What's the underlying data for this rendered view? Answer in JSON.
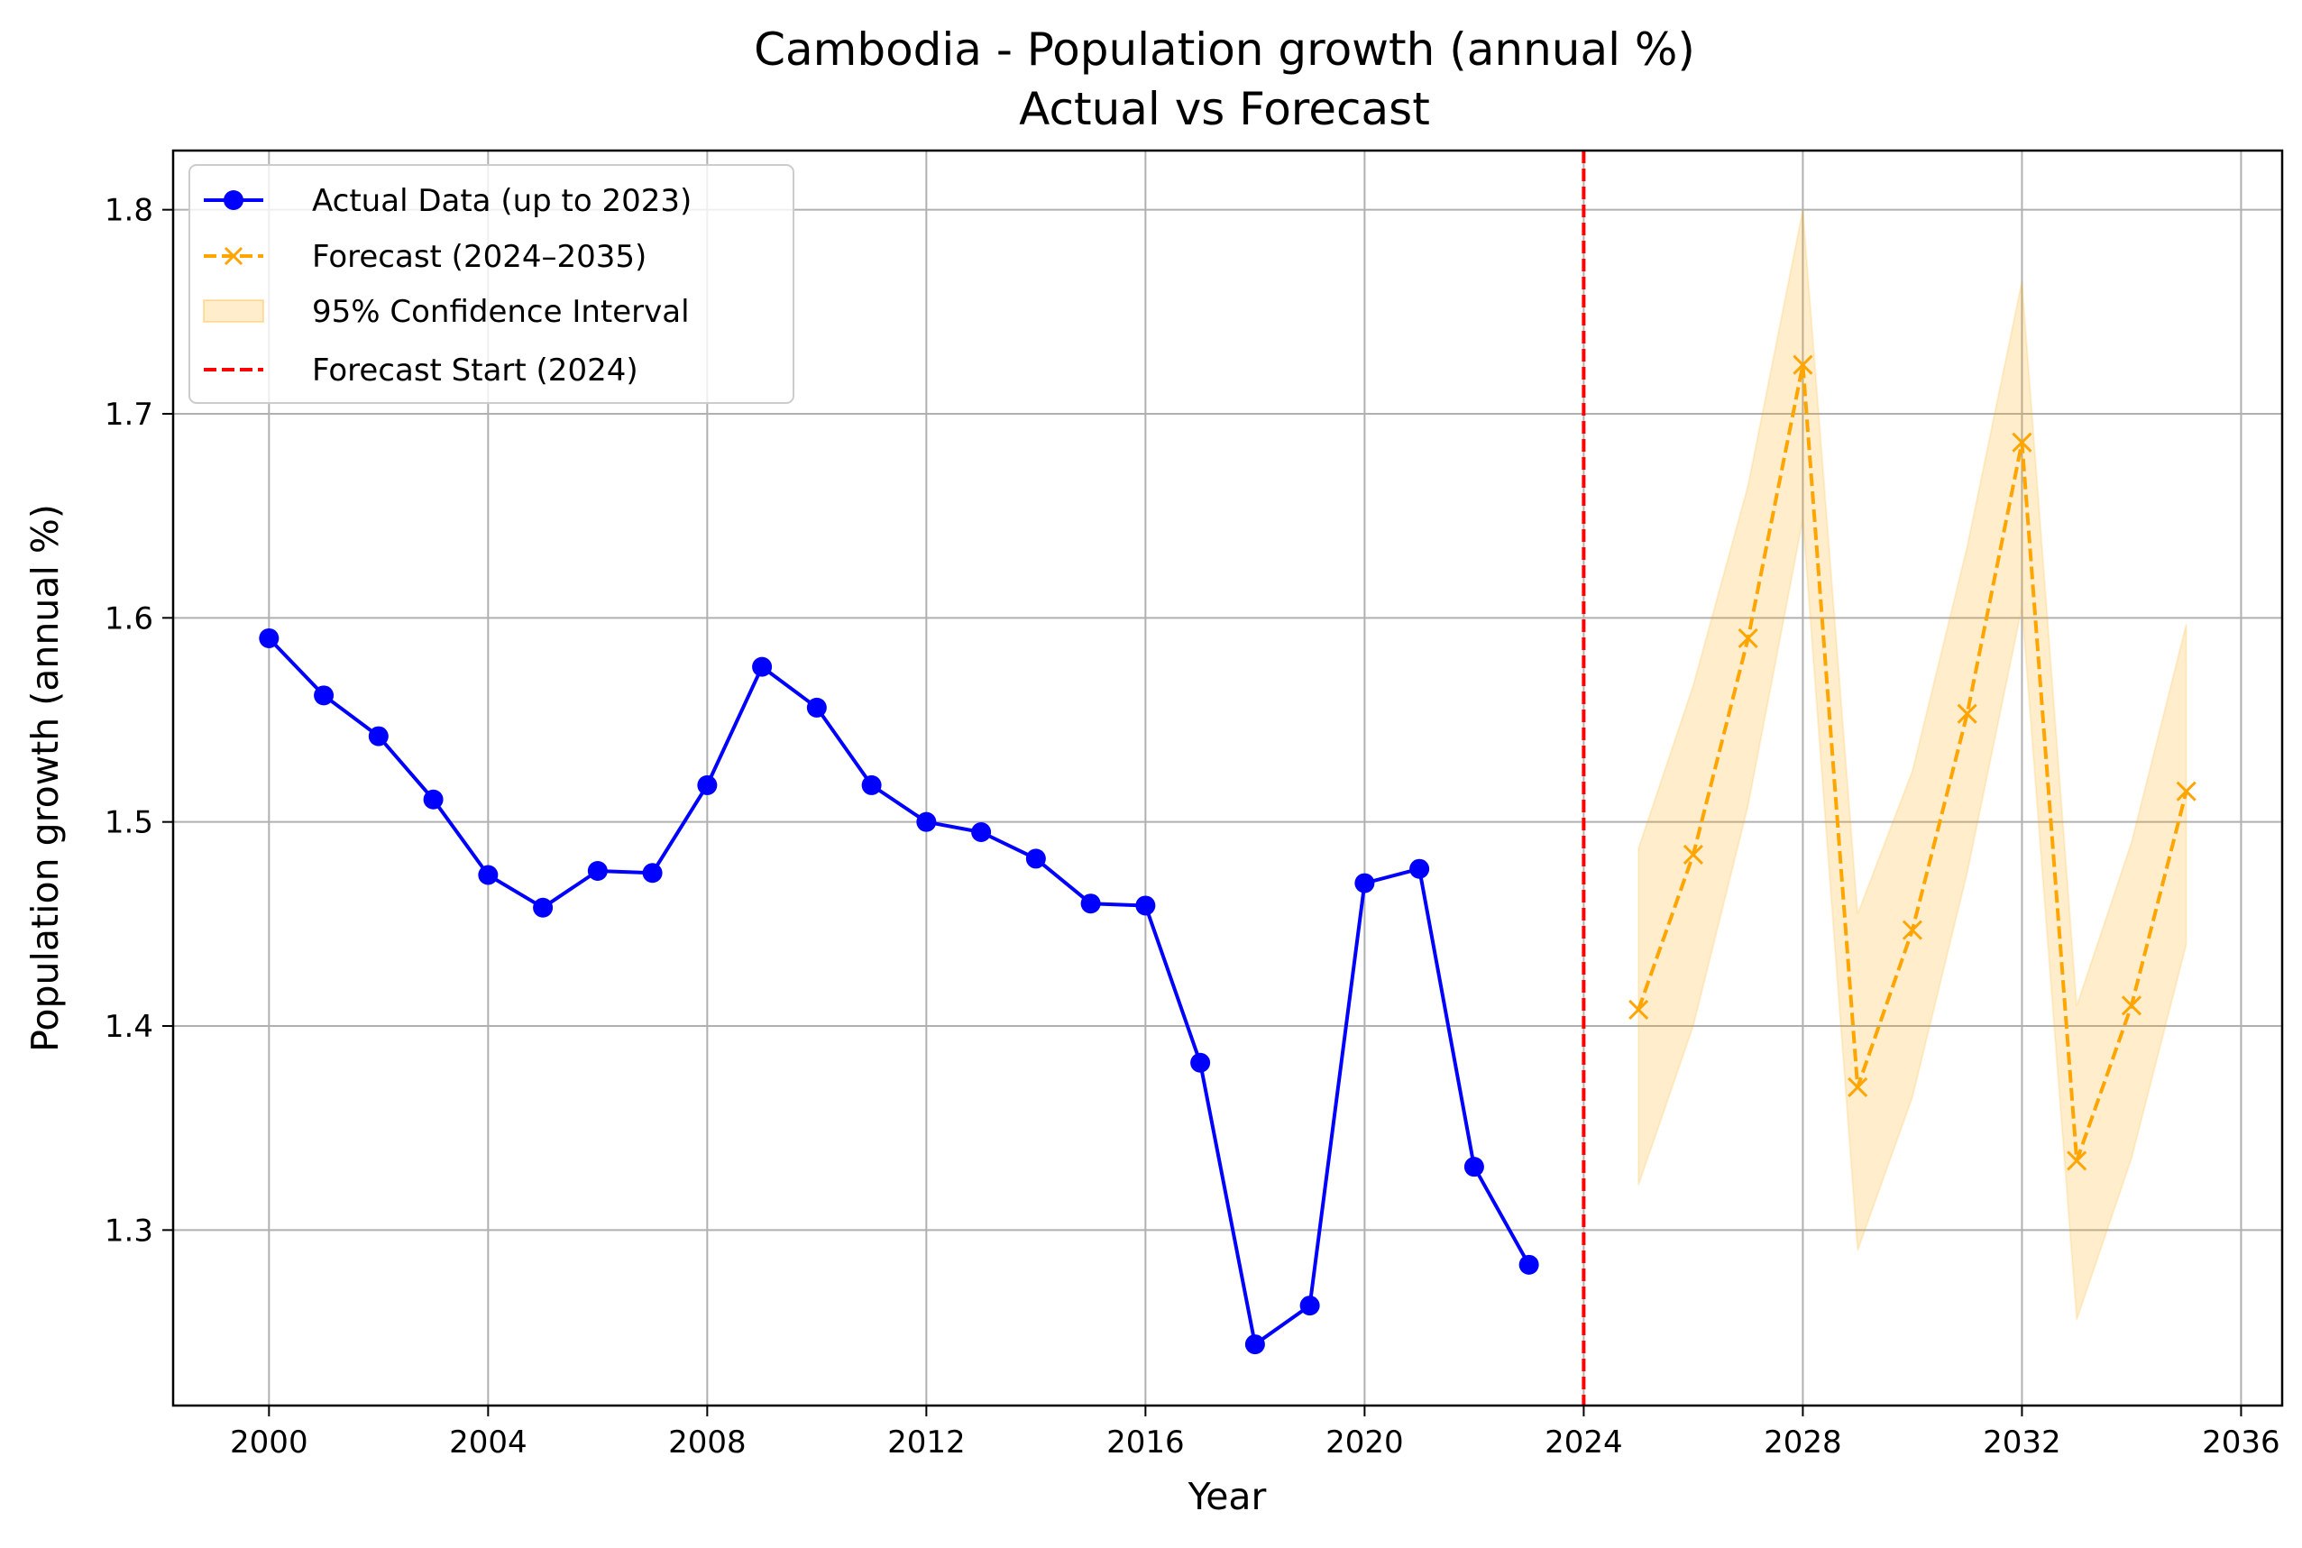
{
  "chart_data": {
    "type": "line",
    "title": "Cambodia - Population growth (annual %)",
    "subtitle": "Actual vs Forecast",
    "xlabel": "Year",
    "ylabel": "Population growth (annual %)",
    "xlim": [
      1998.25,
      2036.75
    ],
    "ylim": [
      1.214,
      1.829
    ],
    "xticks": [
      2000,
      2004,
      2008,
      2012,
      2016,
      2020,
      2024,
      2028,
      2032,
      2036
    ],
    "yticks": [
      1.3,
      1.4,
      1.5,
      1.6,
      1.7,
      1.8
    ],
    "grid": true,
    "legend_position": "top-left",
    "series": [
      {
        "name": "Actual Data (up to 2023)",
        "color": "#0000ff",
        "style": "solid",
        "marker": "circle",
        "x": [
          2000,
          2001,
          2002,
          2003,
          2004,
          2005,
          2006,
          2007,
          2008,
          2009,
          2010,
          2011,
          2012,
          2013,
          2014,
          2015,
          2016,
          2017,
          2018,
          2019,
          2020,
          2021,
          2022,
          2023
        ],
        "y": [
          1.59,
          1.562,
          1.542,
          1.511,
          1.474,
          1.458,
          1.476,
          1.475,
          1.518,
          1.576,
          1.556,
          1.518,
          1.5,
          1.495,
          1.482,
          1.46,
          1.459,
          1.382,
          1.244,
          1.263,
          1.47,
          1.477,
          1.331,
          1.283
        ]
      },
      {
        "name": "Forecast (2024–2035)",
        "color": "#ffa500",
        "style": "dashed",
        "marker": "x",
        "x": [
          2025,
          2026,
          2027,
          2028,
          2029,
          2030,
          2031,
          2032,
          2033,
          2034,
          2035
        ],
        "y": [
          1.408,
          1.484,
          1.59,
          1.724,
          1.37,
          1.447,
          1.553,
          1.686,
          1.334,
          1.41,
          1.515
        ]
      }
    ],
    "confidence_interval": {
      "name": "95% Confidence Interval",
      "color": "#ffa500",
      "x": [
        2025,
        2026,
        2027,
        2028,
        2029,
        2030,
        2031,
        2032,
        2033,
        2034,
        2035
      ],
      "lower": [
        1.322,
        1.4,
        1.508,
        1.648,
        1.29,
        1.365,
        1.475,
        1.605,
        1.256,
        1.335,
        1.44
      ],
      "upper": [
        1.487,
        1.567,
        1.665,
        1.8,
        1.455,
        1.525,
        1.635,
        1.765,
        1.41,
        1.49,
        1.597
      ]
    },
    "vline": {
      "name": "Forecast Start (2024)",
      "x": 2024,
      "color": "#ff0000",
      "style": "dashed"
    }
  }
}
